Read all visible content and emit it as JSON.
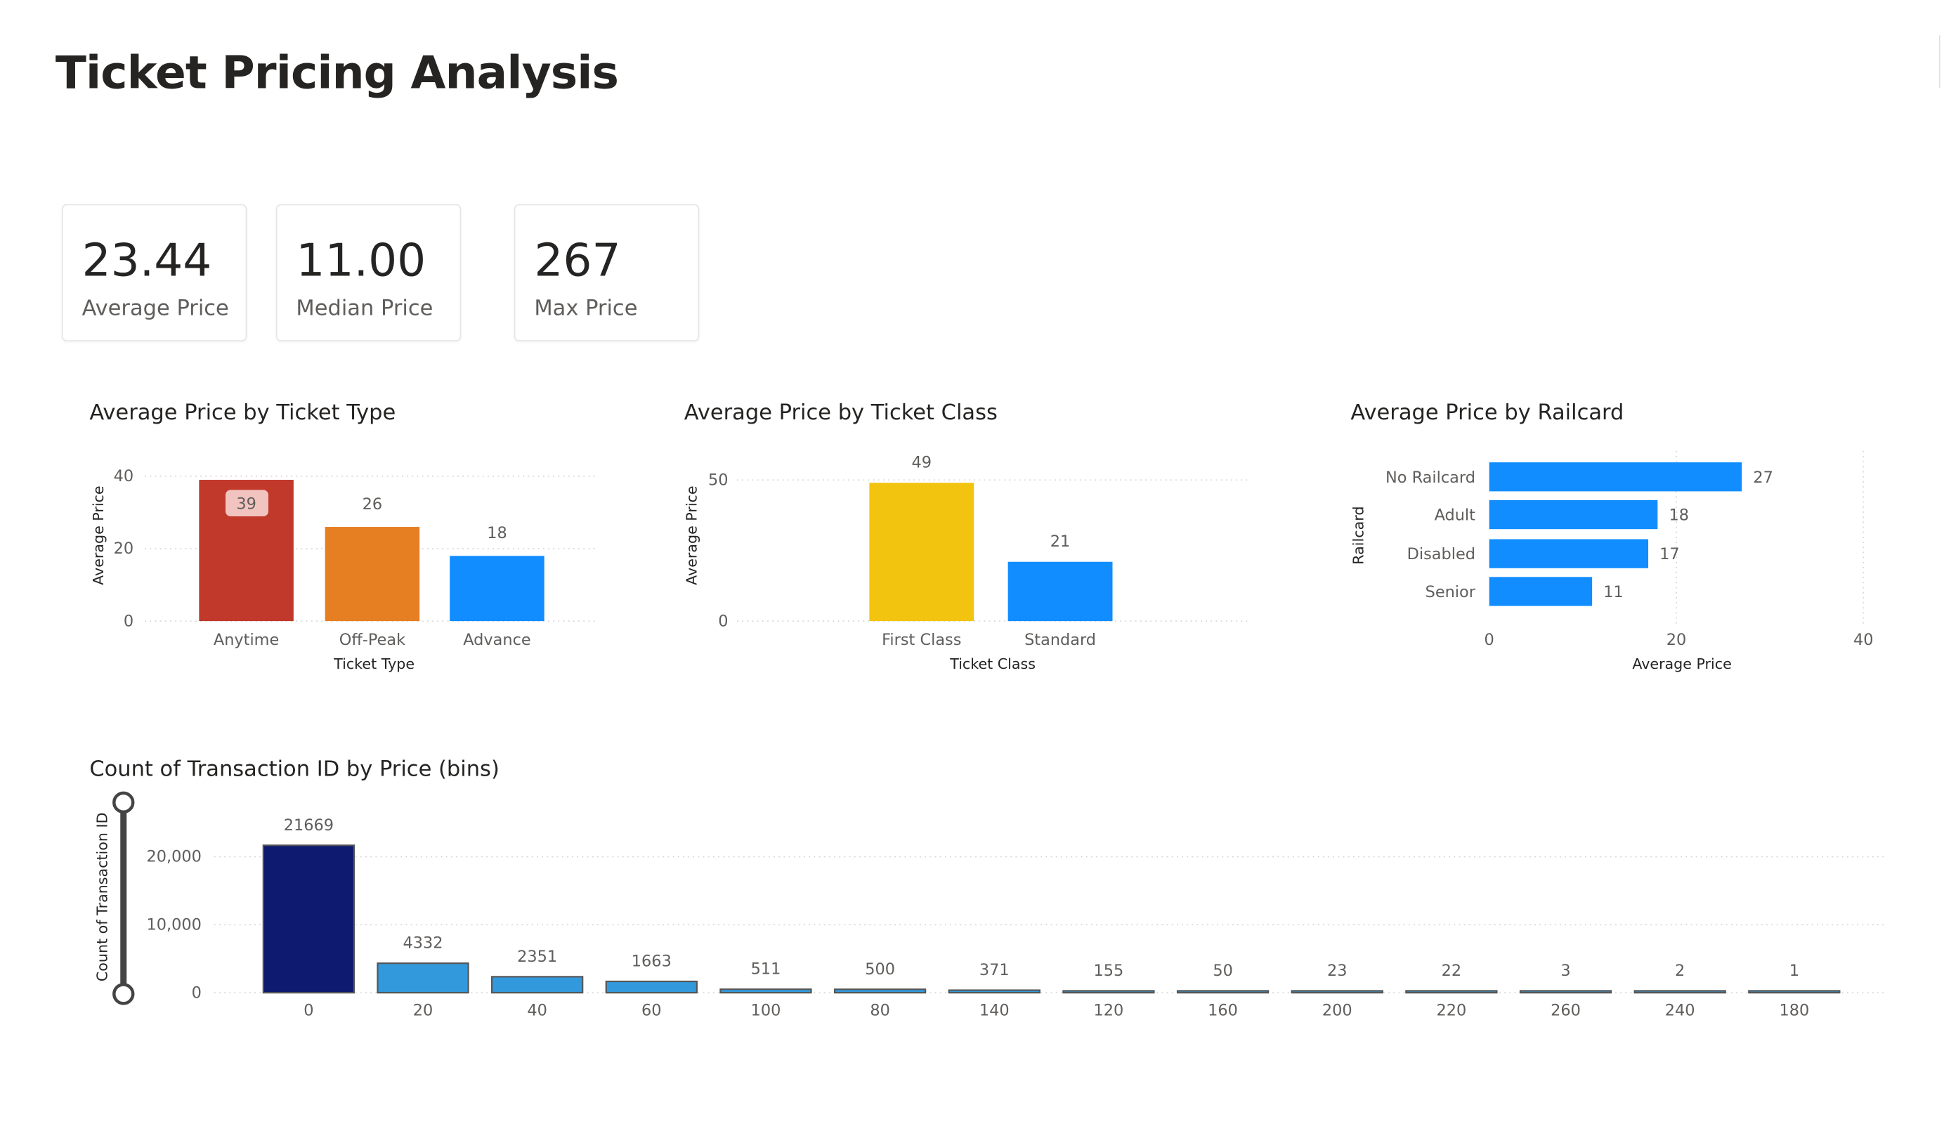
{
  "header": {
    "title": "Ticket Pricing Analysis"
  },
  "kpis": [
    {
      "value": "23.44",
      "label": "Average Price"
    },
    {
      "value": "11.00",
      "label": "Median Price"
    },
    {
      "value": "267",
      "label": "Max Price"
    }
  ],
  "chart_data": [
    {
      "type": "bar",
      "title": "Average Price by Ticket Type",
      "xlabel": "Ticket Type",
      "ylabel": "Average Price",
      "categories": [
        "Anytime",
        "Off-Peak",
        "Advance"
      ],
      "values": [
        39,
        26,
        18
      ],
      "data_labels": [
        "39",
        "26",
        "18"
      ],
      "colors": [
        "#C0392B",
        "#E67E22",
        "#118DFF"
      ],
      "ylim": [
        0,
        40
      ],
      "yticks": [
        "0",
        "20",
        "40"
      ],
      "ytick_values": [
        0,
        20,
        40
      ]
    },
    {
      "type": "bar",
      "title": "Average Price by Ticket Class",
      "xlabel": "Ticket Class",
      "ylabel": "Average Price",
      "categories": [
        "First Class",
        "Standard"
      ],
      "values": [
        49,
        21
      ],
      "data_labels": [
        "49",
        "21"
      ],
      "colors": [
        "#F2C40F",
        "#118DFF"
      ],
      "ylim": [
        0,
        50
      ],
      "yticks": [
        "0",
        "50"
      ],
      "ytick_values": [
        0,
        50
      ]
    },
    {
      "type": "bar",
      "orientation": "horizontal",
      "title": "Average Price by Railcard",
      "xlabel": "Average Price",
      "ylabel": "Railcard",
      "categories": [
        "No Railcard",
        "Adult",
        "Disabled",
        "Senior"
      ],
      "values": [
        27,
        18,
        17,
        11
      ],
      "data_labels": [
        "27",
        "18",
        "17",
        "11"
      ],
      "colors": [
        "#118DFF"
      ],
      "xlim": [
        0,
        40
      ],
      "xticks": [
        "0",
        "20",
        "40"
      ],
      "xtick_values": [
        0,
        20,
        40
      ]
    },
    {
      "type": "bar",
      "title": "Count of Transaction ID by Price (bins)",
      "xlabel": "",
      "ylabel": "Count of Transaction ID",
      "categories": [
        "0",
        "20",
        "40",
        "60",
        "100",
        "80",
        "140",
        "120",
        "160",
        "200",
        "220",
        "260",
        "240",
        "180"
      ],
      "values": [
        21669,
        4332,
        2351,
        1663,
        511,
        500,
        371,
        155,
        50,
        23,
        22,
        3,
        2,
        1
      ],
      "data_labels": [
        "21669",
        "4332",
        "2351",
        "1663",
        "511",
        "500",
        "371",
        "155",
        "50",
        "23",
        "22",
        "3",
        "2",
        "1"
      ],
      "colors": [
        "#0D1A70",
        "#3399DD"
      ],
      "ylim": [
        0,
        20000
      ],
      "yticks": [
        "0",
        "10,000",
        "20,000"
      ],
      "ytick_values": [
        0,
        10000,
        20000
      ]
    }
  ]
}
